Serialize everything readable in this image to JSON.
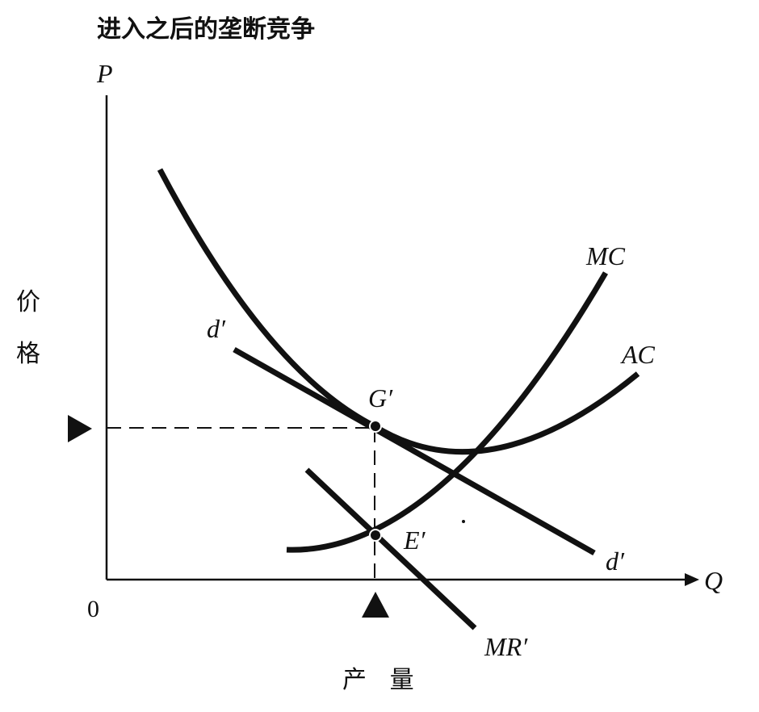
{
  "title": "进入之后的垄断竞争",
  "axes": {
    "y_label": "P",
    "x_label": "Q",
    "origin": "0",
    "y_name_char1": "价",
    "y_name_char2": "格",
    "x_name": "产   量"
  },
  "curves": {
    "mc_label": "MC",
    "ac_label": "AC",
    "d_label_top": "d′",
    "d_label_bottom": "d′",
    "mr_label": "MR′"
  },
  "points": {
    "g_label": "G′",
    "e_label": "E′"
  }
}
